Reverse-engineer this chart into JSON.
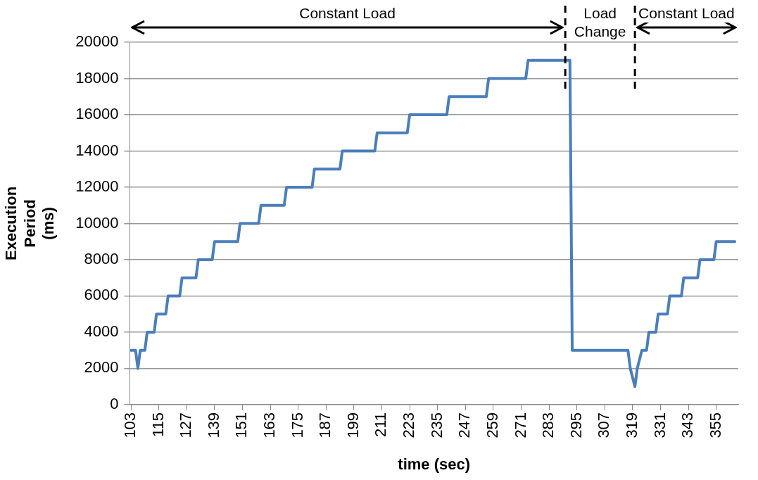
{
  "chart_data": {
    "type": "line",
    "xlabel": "time (sec)",
    "ylabel": "Execution Period (ms)",
    "x": [
      103,
      105,
      106,
      107,
      109,
      110,
      113,
      114,
      118,
      119,
      124,
      125,
      131,
      132,
      138,
      139,
      149,
      150,
      158,
      159,
      169,
      170,
      181,
      182,
      193,
      194,
      208,
      209,
      222,
      223,
      239,
      240,
      256,
      257,
      273,
      274,
      292,
      293,
      317,
      318,
      320,
      321,
      323,
      325,
      326,
      329,
      330,
      334,
      335,
      340,
      341,
      347,
      348,
      354,
      355,
      363
    ],
    "series": [
      {
        "color": "#4a7ebb",
        "values": [
          3000,
          3000,
          2000,
          3000,
          3000,
          4000,
          4000,
          5000,
          5000,
          6000,
          6000,
          7000,
          7000,
          8000,
          8000,
          9000,
          9000,
          10000,
          10000,
          11000,
          11000,
          12000,
          12000,
          13000,
          13000,
          14000,
          14000,
          15000,
          15000,
          16000,
          16000,
          17000,
          17000,
          18000,
          18000,
          19000,
          19000,
          3000,
          3000,
          2000,
          1000,
          2000,
          3000,
          3000,
          4000,
          4000,
          5000,
          5000,
          6000,
          6000,
          7000,
          7000,
          8000,
          8000,
          9000,
          9000
        ]
      }
    ],
    "xlim": [
      102.5,
      364.5
    ],
    "xticks": [
      103,
      115,
      127,
      139,
      151,
      163,
      175,
      187,
      199,
      211,
      223,
      235,
      247,
      259,
      271,
      283,
      295,
      307,
      319,
      331,
      343,
      355
    ],
    "ylim": [
      0,
      20000
    ],
    "yticks": [
      0,
      2000,
      4000,
      6000,
      8000,
      10000,
      12000,
      14000,
      16000,
      18000,
      20000
    ],
    "grid": "y",
    "legend": false,
    "marker": "none",
    "line_style": "solid",
    "ref_lines": [
      {
        "axis": "x",
        "value": 290,
        "color": "#000000",
        "line_style": "dashed"
      },
      {
        "axis": "x",
        "value": 320,
        "color": "#000000",
        "line_style": "dashed"
      }
    ],
    "annotations": [
      "Constant Load",
      "Load Change",
      "Constant Load"
    ]
  }
}
